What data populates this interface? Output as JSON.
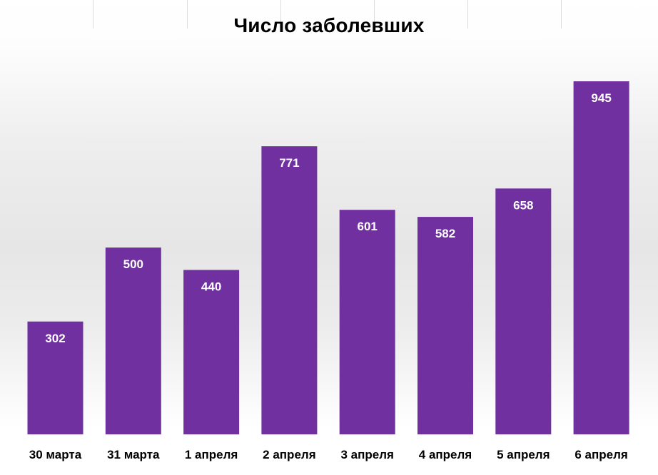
{
  "chart_data": {
    "type": "bar",
    "title": "Число заболевших",
    "categories": [
      "30 марта",
      "31 марта",
      "1 апреля",
      "2 апреля",
      "3 апреля",
      "4 апреля",
      "5 апреля",
      "6 апреля"
    ],
    "values": [
      302,
      500,
      440,
      771,
      601,
      582,
      658,
      945
    ],
    "xlabel": "",
    "ylabel": "",
    "ylim": [
      0,
      945
    ],
    "grid": false,
    "legend": "none",
    "data_labels": "inside-top",
    "bar_color": "#7030a0",
    "label_color": "#ffffff"
  }
}
